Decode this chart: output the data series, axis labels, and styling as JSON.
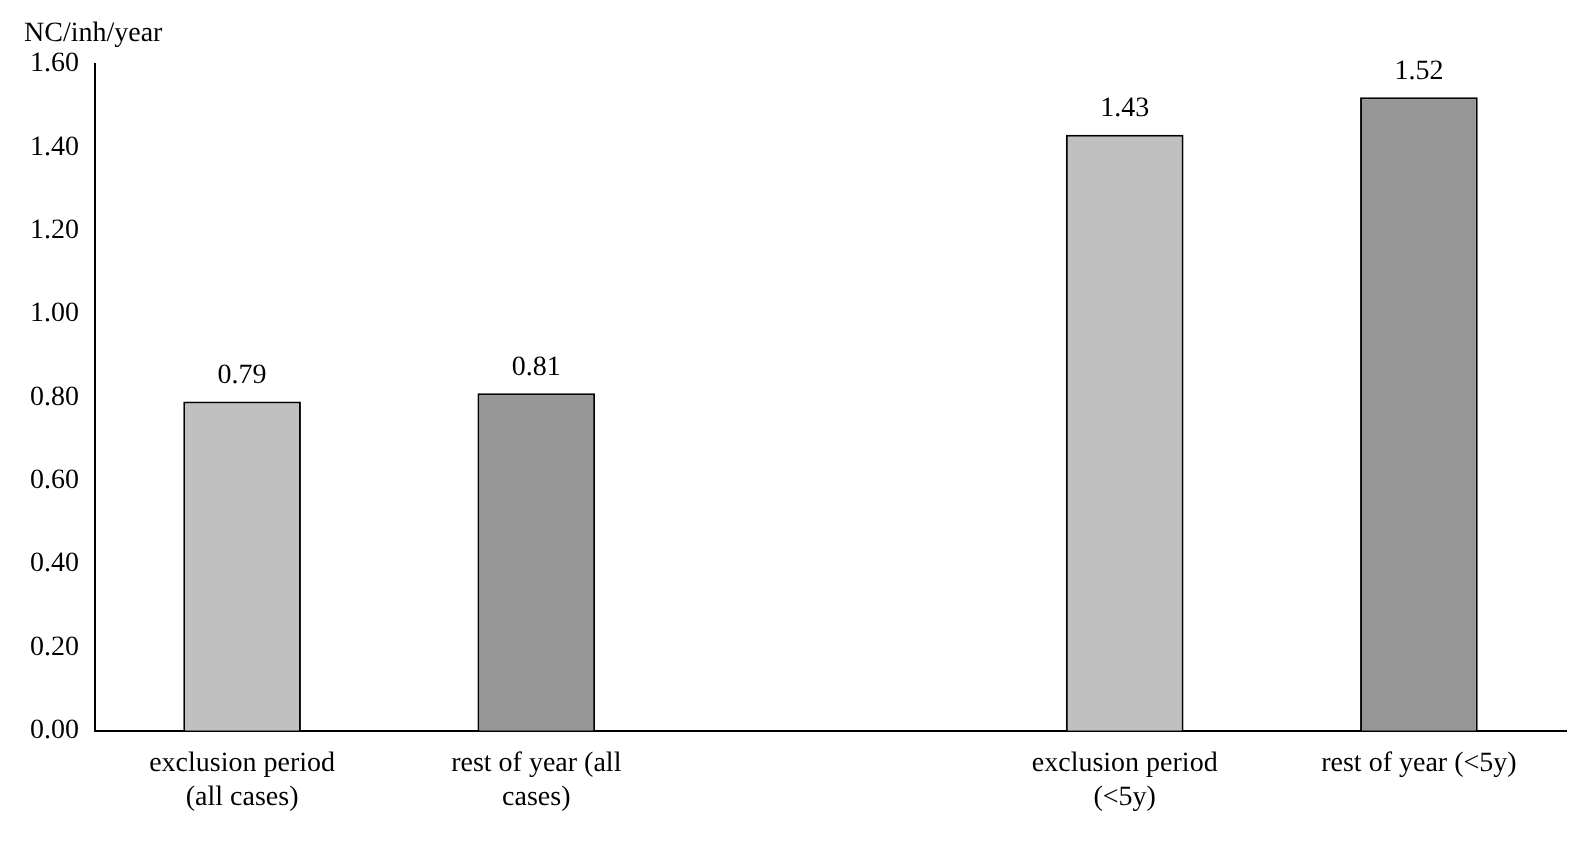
{
  "chart_data": {
    "type": "bar",
    "ylabel": "NC/inh/year",
    "categories": [
      "exclusion period (all cases)",
      "rest of year (all cases)",
      null,
      "exclusion period (<5y)",
      "rest of year (<5y)"
    ],
    "values": [
      0.79,
      0.81,
      null,
      1.43,
      1.52
    ],
    "colors": [
      "#c0c0c0",
      "#969696",
      "#c0c0c0",
      "#c0c0c0",
      "#969696"
    ],
    "ylim": [
      0,
      1.6
    ],
    "yticks": [
      {
        "value": 0,
        "label": "0.00"
      },
      {
        "value": 0.2,
        "label": "0.20"
      },
      {
        "value": 0.4,
        "label": "0.40"
      },
      {
        "value": 0.6,
        "label": "0.60"
      },
      {
        "value": 0.8,
        "label": "0.80"
      },
      {
        "value": 1,
        "label": "1.00"
      },
      {
        "value": 1.2,
        "label": "1.20"
      },
      {
        "value": 1.4,
        "label": "1.40"
      },
      {
        "value": 1.6,
        "label": "1.60"
      }
    ],
    "data_labels": true,
    "grid": false,
    "legend": false
  }
}
